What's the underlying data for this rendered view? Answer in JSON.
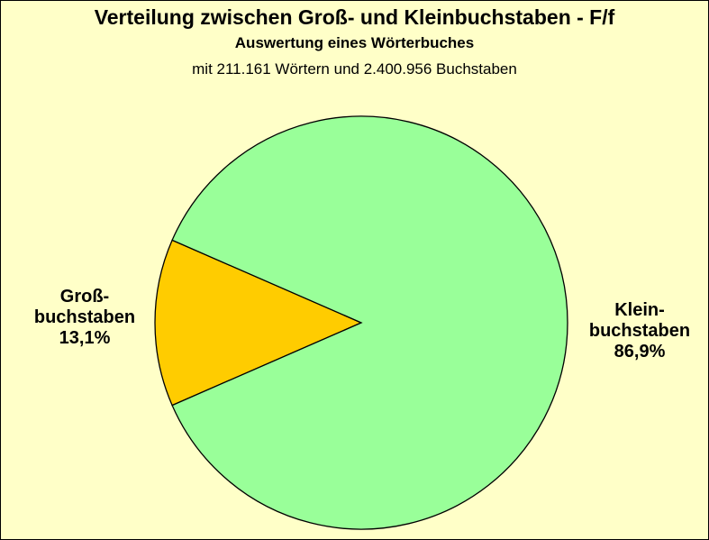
{
  "chart_data": {
    "type": "pie",
    "title": "Verteilung zwischen Groß- und  Kleinbuchstaben - F/f",
    "subtitle": "Auswertung eines Wörterbuches",
    "note": "mit 211.161 Wörtern und 2.400.956 Buchstaben",
    "slices": [
      {
        "label_lines": [
          "Groß-",
          "buchstaben"
        ],
        "value": 13.1,
        "value_label": "13,1%",
        "color": "#FFCC00"
      },
      {
        "label_lines": [
          "Klein-",
          "buchstaben"
        ],
        "value": 86.9,
        "value_label": "86,9%",
        "color": "#99FF99"
      }
    ],
    "background_color": "#FFFFC8"
  }
}
